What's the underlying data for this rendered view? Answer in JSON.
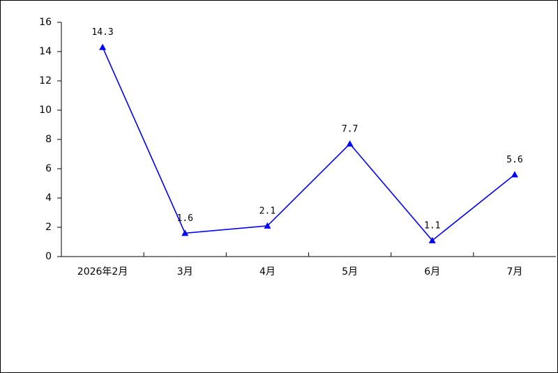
{
  "chart_data": {
    "type": "line",
    "categories": [
      "2026年2月",
      "3月",
      "4月",
      "5月",
      "6月",
      "7月"
    ],
    "values": [
      14.3,
      1.6,
      2.1,
      7.7,
      1.1,
      5.6
    ],
    "color": "#0000ff",
    "ylim": [
      0,
      16
    ],
    "yticks": [
      0,
      2,
      4,
      6,
      8,
      10,
      12,
      14,
      16
    ]
  }
}
